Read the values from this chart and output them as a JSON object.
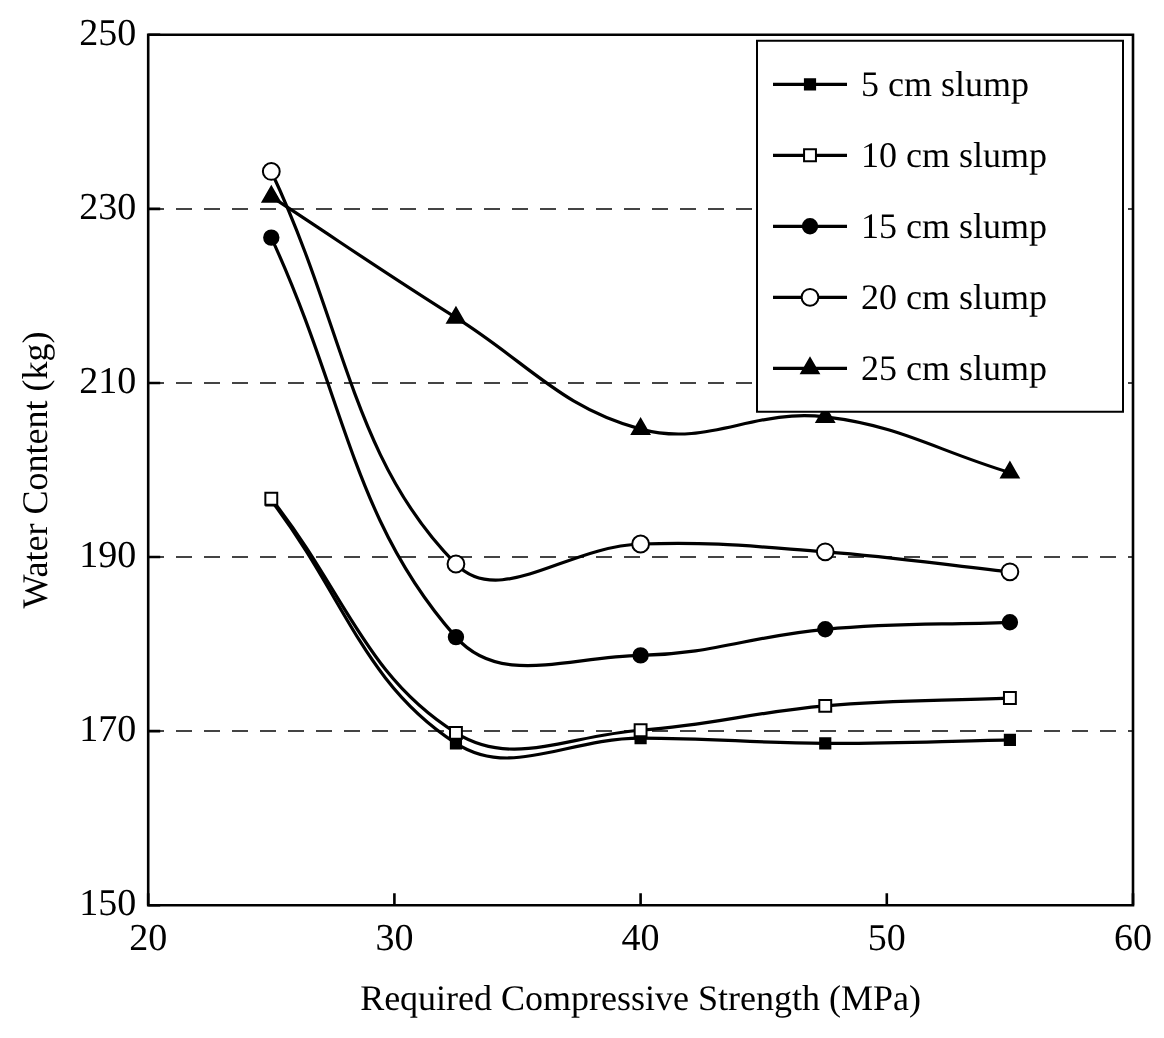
{
  "chart_data": {
    "type": "line",
    "xlabel": "Required Compressive Strength (MPa)",
    "ylabel": "Water Content (kg)",
    "x": [
      25,
      32.5,
      40,
      47.5,
      55
    ],
    "xlim": [
      20,
      60
    ],
    "xticks": [
      20,
      30,
      40,
      50,
      60
    ],
    "ylim": [
      150,
      250
    ],
    "yticks": [
      150,
      170,
      190,
      210,
      230,
      250
    ],
    "grid": "y",
    "legend": "top right",
    "line_style": "solid",
    "series": [
      {
        "name": "5 cm slump",
        "color": "#000000",
        "marker": "square",
        "values": [
          196.5,
          168.6,
          169.2,
          168.6,
          169.0
        ]
      },
      {
        "name": "10 cm slump",
        "color": "#000000",
        "marker": "square-open",
        "values": [
          196.7,
          169.8,
          170.1,
          172.9,
          173.8
        ]
      },
      {
        "name": "15 cm slump",
        "color": "#000000",
        "marker": "circle",
        "values": [
          226.7,
          180.8,
          178.7,
          181.7,
          182.5
        ]
      },
      {
        "name": "20 cm slump",
        "color": "#000000",
        "marker": "circle-open",
        "values": [
          234.3,
          189.2,
          191.5,
          190.6,
          188.3
        ]
      },
      {
        "name": "25 cm slump",
        "color": "#000000",
        "marker": "triangle",
        "values": [
          231.4,
          217.5,
          204.7,
          206.1,
          199.7
        ]
      }
    ]
  }
}
